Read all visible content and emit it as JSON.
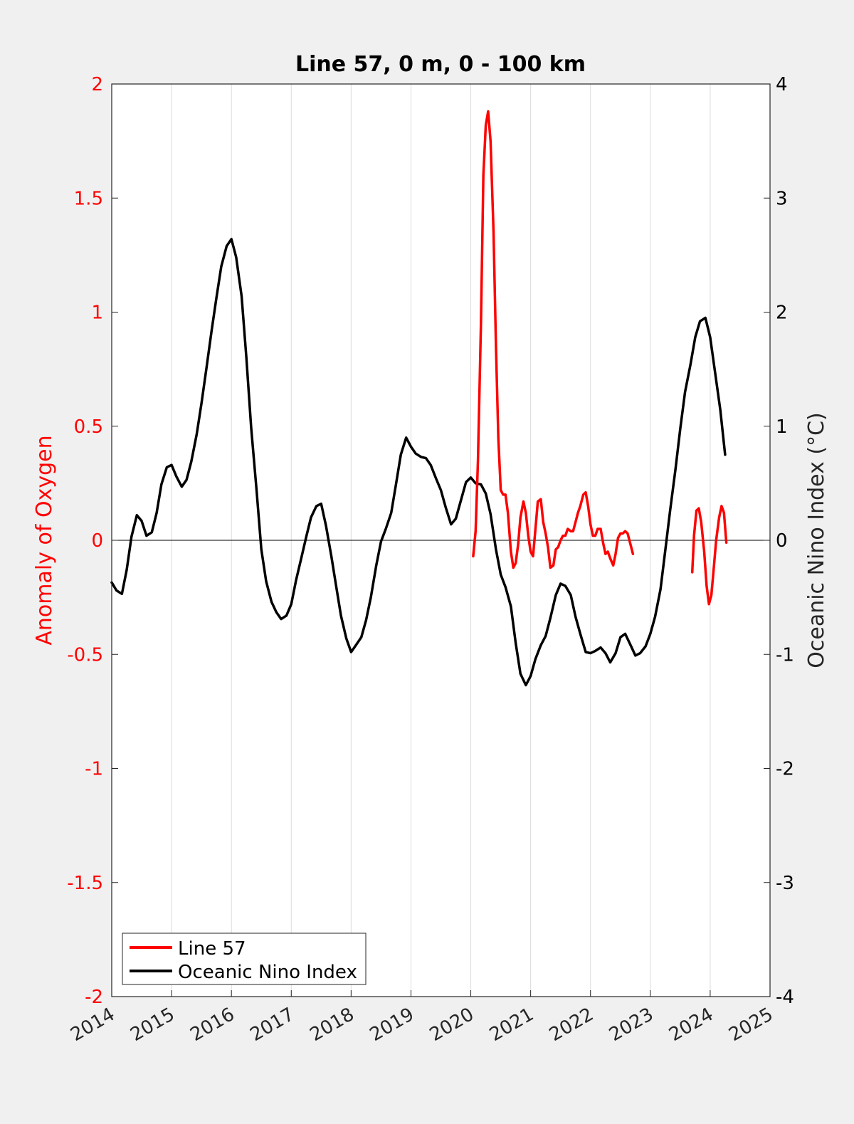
{
  "chart_data": {
    "type": "line",
    "title": "Line 57, 0 m, 0 - 100 km",
    "xlabel": "",
    "ylabel_left": "Anomaly of Oxygen",
    "ylabel_right": "Oceanic Nino Index (°C)",
    "xlim": [
      2014,
      2025
    ],
    "ylim_left": [
      -2,
      2
    ],
    "ylim_right": [
      -4,
      4
    ],
    "x_ticks": [
      "2014",
      "2015",
      "2016",
      "2017",
      "2018",
      "2019",
      "2020",
      "2021",
      "2022",
      "2023",
      "2024",
      "2025"
    ],
    "y_ticks_left": [
      "2",
      "1.5",
      "1",
      "0.5",
      "0",
      "-0.5",
      "-1",
      "-1.5",
      "-2"
    ],
    "y_ticks_right": [
      "4",
      "3",
      "2",
      "1",
      "0",
      "-1",
      "-2",
      "-3",
      "-4"
    ],
    "grid": "vertical",
    "zero_line": true,
    "legend_position": "bottom-left",
    "colors": {
      "line57": "#ff0000",
      "oni": "#000000",
      "left_axis": "#ff0000",
      "right_axis": "#000000"
    },
    "series": [
      {
        "name": "Line 57",
        "axis": "left",
        "segments": [
          [
            [
              2020.04,
              -0.07
            ],
            [
              2020.08,
              0.04
            ],
            [
              2020.12,
              0.35
            ],
            [
              2020.17,
              0.95
            ],
            [
              2020.21,
              1.6
            ],
            [
              2020.25,
              1.82
            ],
            [
              2020.29,
              1.88
            ],
            [
              2020.33,
              1.75
            ],
            [
              2020.38,
              1.35
            ],
            [
              2020.42,
              0.85
            ],
            [
              2020.46,
              0.45
            ],
            [
              2020.5,
              0.22
            ],
            [
              2020.54,
              0.2
            ],
            [
              2020.58,
              0.2
            ],
            [
              2020.62,
              0.12
            ],
            [
              2020.67,
              -0.05
            ],
            [
              2020.71,
              -0.12
            ],
            [
              2020.75,
              -0.1
            ],
            [
              2020.79,
              -0.02
            ],
            [
              2020.83,
              0.1
            ],
            [
              2020.88,
              0.17
            ],
            [
              2020.92,
              0.12
            ],
            [
              2020.96,
              0.02
            ],
            [
              2021.0,
              -0.05
            ],
            [
              2021.04,
              -0.07
            ],
            [
              2021.08,
              0.05
            ],
            [
              2021.12,
              0.17
            ],
            [
              2021.17,
              0.18
            ],
            [
              2021.21,
              0.08
            ],
            [
              2021.25,
              0.03
            ],
            [
              2021.29,
              -0.03
            ],
            [
              2021.33,
              -0.12
            ],
            [
              2021.38,
              -0.11
            ],
            [
              2021.42,
              -0.04
            ],
            [
              2021.46,
              -0.03
            ],
            [
              2021.5,
              0.0
            ],
            [
              2021.54,
              0.02
            ],
            [
              2021.58,
              0.02
            ],
            [
              2021.62,
              0.05
            ],
            [
              2021.67,
              0.04
            ],
            [
              2021.71,
              0.04
            ],
            [
              2021.75,
              0.08
            ],
            [
              2021.79,
              0.12
            ],
            [
              2021.83,
              0.15
            ],
            [
              2021.88,
              0.2
            ],
            [
              2021.92,
              0.21
            ],
            [
              2021.96,
              0.15
            ],
            [
              2022.0,
              0.07
            ],
            [
              2022.04,
              0.02
            ],
            [
              2022.08,
              0.02
            ],
            [
              2022.12,
              0.05
            ],
            [
              2022.17,
              0.05
            ],
            [
              2022.21,
              -0.01
            ],
            [
              2022.25,
              -0.06
            ],
            [
              2022.29,
              -0.05
            ],
            [
              2022.33,
              -0.08
            ],
            [
              2022.38,
              -0.11
            ],
            [
              2022.42,
              -0.06
            ],
            [
              2022.46,
              0.01
            ],
            [
              2022.5,
              0.03
            ],
            [
              2022.54,
              0.03
            ],
            [
              2022.58,
              0.04
            ],
            [
              2022.62,
              0.03
            ],
            [
              2022.67,
              -0.02
            ],
            [
              2022.71,
              -0.06
            ]
          ],
          [
            [
              2023.7,
              -0.14
            ],
            [
              2023.73,
              0.02
            ],
            [
              2023.77,
              0.13
            ],
            [
              2023.81,
              0.14
            ],
            [
              2023.85,
              0.08
            ],
            [
              2023.9,
              -0.05
            ],
            [
              2023.94,
              -0.2
            ],
            [
              2023.98,
              -0.28
            ],
            [
              2024.02,
              -0.24
            ],
            [
              2024.06,
              -0.12
            ],
            [
              2024.1,
              0.0
            ],
            [
              2024.15,
              0.1
            ],
            [
              2024.19,
              0.15
            ],
            [
              2024.23,
              0.12
            ],
            [
              2024.27,
              -0.01
            ]
          ]
        ]
      },
      {
        "name": "Oceanic Nino Index",
        "axis": "right",
        "segments": [
          [
            [
              2014.0,
              -0.37
            ],
            [
              2014.08,
              -0.44
            ],
            [
              2014.17,
              -0.47
            ],
            [
              2014.25,
              -0.26
            ],
            [
              2014.33,
              0.03
            ],
            [
              2014.42,
              0.22
            ],
            [
              2014.5,
              0.17
            ],
            [
              2014.58,
              0.04
            ],
            [
              2014.67,
              0.07
            ],
            [
              2014.75,
              0.24
            ],
            [
              2014.83,
              0.49
            ],
            [
              2014.92,
              0.64
            ],
            [
              2015.0,
              0.66
            ],
            [
              2015.08,
              0.56
            ],
            [
              2015.17,
              0.47
            ],
            [
              2015.25,
              0.53
            ],
            [
              2015.33,
              0.69
            ],
            [
              2015.42,
              0.93
            ],
            [
              2015.5,
              1.2
            ],
            [
              2015.58,
              1.5
            ],
            [
              2015.67,
              1.84
            ],
            [
              2015.75,
              2.13
            ],
            [
              2015.83,
              2.4
            ],
            [
              2015.92,
              2.58
            ],
            [
              2016.0,
              2.64
            ],
            [
              2016.08,
              2.48
            ],
            [
              2016.17,
              2.14
            ],
            [
              2016.25,
              1.6
            ],
            [
              2016.33,
              0.99
            ],
            [
              2016.42,
              0.44
            ],
            [
              2016.5,
              -0.08
            ],
            [
              2016.58,
              -0.36
            ],
            [
              2016.67,
              -0.54
            ],
            [
              2016.75,
              -0.63
            ],
            [
              2016.83,
              -0.69
            ],
            [
              2016.92,
              -0.66
            ],
            [
              2017.0,
              -0.56
            ],
            [
              2017.08,
              -0.35
            ],
            [
              2017.17,
              -0.15
            ],
            [
              2017.25,
              0.03
            ],
            [
              2017.33,
              0.2
            ],
            [
              2017.42,
              0.3
            ],
            [
              2017.5,
              0.32
            ],
            [
              2017.58,
              0.13
            ],
            [
              2017.67,
              -0.14
            ],
            [
              2017.75,
              -0.4
            ],
            [
              2017.83,
              -0.66
            ],
            [
              2017.92,
              -0.86
            ],
            [
              2018.0,
              -0.98
            ],
            [
              2018.08,
              -0.92
            ],
            [
              2018.17,
              -0.85
            ],
            [
              2018.25,
              -0.7
            ],
            [
              2018.33,
              -0.5
            ],
            [
              2018.42,
              -0.22
            ],
            [
              2018.5,
              -0.01
            ],
            [
              2018.58,
              0.1
            ],
            [
              2018.67,
              0.24
            ],
            [
              2018.75,
              0.49
            ],
            [
              2018.83,
              0.75
            ],
            [
              2018.92,
              0.9
            ],
            [
              2019.0,
              0.82
            ],
            [
              2019.08,
              0.76
            ],
            [
              2019.17,
              0.73
            ],
            [
              2019.25,
              0.72
            ],
            [
              2019.33,
              0.66
            ],
            [
              2019.42,
              0.54
            ],
            [
              2019.5,
              0.44
            ],
            [
              2019.58,
              0.29
            ],
            [
              2019.67,
              0.14
            ],
            [
              2019.75,
              0.19
            ],
            [
              2019.83,
              0.34
            ],
            [
              2019.92,
              0.51
            ],
            [
              2020.0,
              0.55
            ],
            [
              2020.08,
              0.5
            ],
            [
              2020.17,
              0.49
            ],
            [
              2020.25,
              0.41
            ],
            [
              2020.33,
              0.23
            ],
            [
              2020.42,
              -0.08
            ],
            [
              2020.5,
              -0.3
            ],
            [
              2020.58,
              -0.41
            ],
            [
              2020.67,
              -0.58
            ],
            [
              2020.75,
              -0.9
            ],
            [
              2020.83,
              -1.17
            ],
            [
              2020.92,
              -1.27
            ],
            [
              2021.0,
              -1.19
            ],
            [
              2021.08,
              -1.04
            ],
            [
              2021.17,
              -0.92
            ],
            [
              2021.25,
              -0.84
            ],
            [
              2021.33,
              -0.68
            ],
            [
              2021.42,
              -0.48
            ],
            [
              2021.5,
              -0.38
            ],
            [
              2021.58,
              -0.4
            ],
            [
              2021.67,
              -0.48
            ],
            [
              2021.75,
              -0.67
            ],
            [
              2021.83,
              -0.82
            ],
            [
              2021.92,
              -0.98
            ],
            [
              2022.0,
              -0.99
            ],
            [
              2022.08,
              -0.97
            ],
            [
              2022.17,
              -0.94
            ],
            [
              2022.25,
              -0.99
            ],
            [
              2022.33,
              -1.07
            ],
            [
              2022.42,
              -0.99
            ],
            [
              2022.5,
              -0.85
            ],
            [
              2022.58,
              -0.82
            ],
            [
              2022.67,
              -0.92
            ],
            [
              2022.75,
              -1.01
            ],
            [
              2022.83,
              -0.99
            ],
            [
              2022.92,
              -0.93
            ],
            [
              2023.0,
              -0.82
            ],
            [
              2023.08,
              -0.67
            ],
            [
              2023.17,
              -0.43
            ],
            [
              2023.25,
              -0.09
            ],
            [
              2023.33,
              0.26
            ],
            [
              2023.42,
              0.62
            ],
            [
              2023.5,
              0.98
            ],
            [
              2023.58,
              1.3
            ],
            [
              2023.67,
              1.54
            ],
            [
              2023.75,
              1.78
            ],
            [
              2023.83,
              1.92
            ],
            [
              2023.92,
              1.95
            ],
            [
              2024.0,
              1.78
            ],
            [
              2024.08,
              1.48
            ],
            [
              2024.17,
              1.14
            ],
            [
              2024.25,
              0.75
            ]
          ]
        ]
      }
    ]
  }
}
